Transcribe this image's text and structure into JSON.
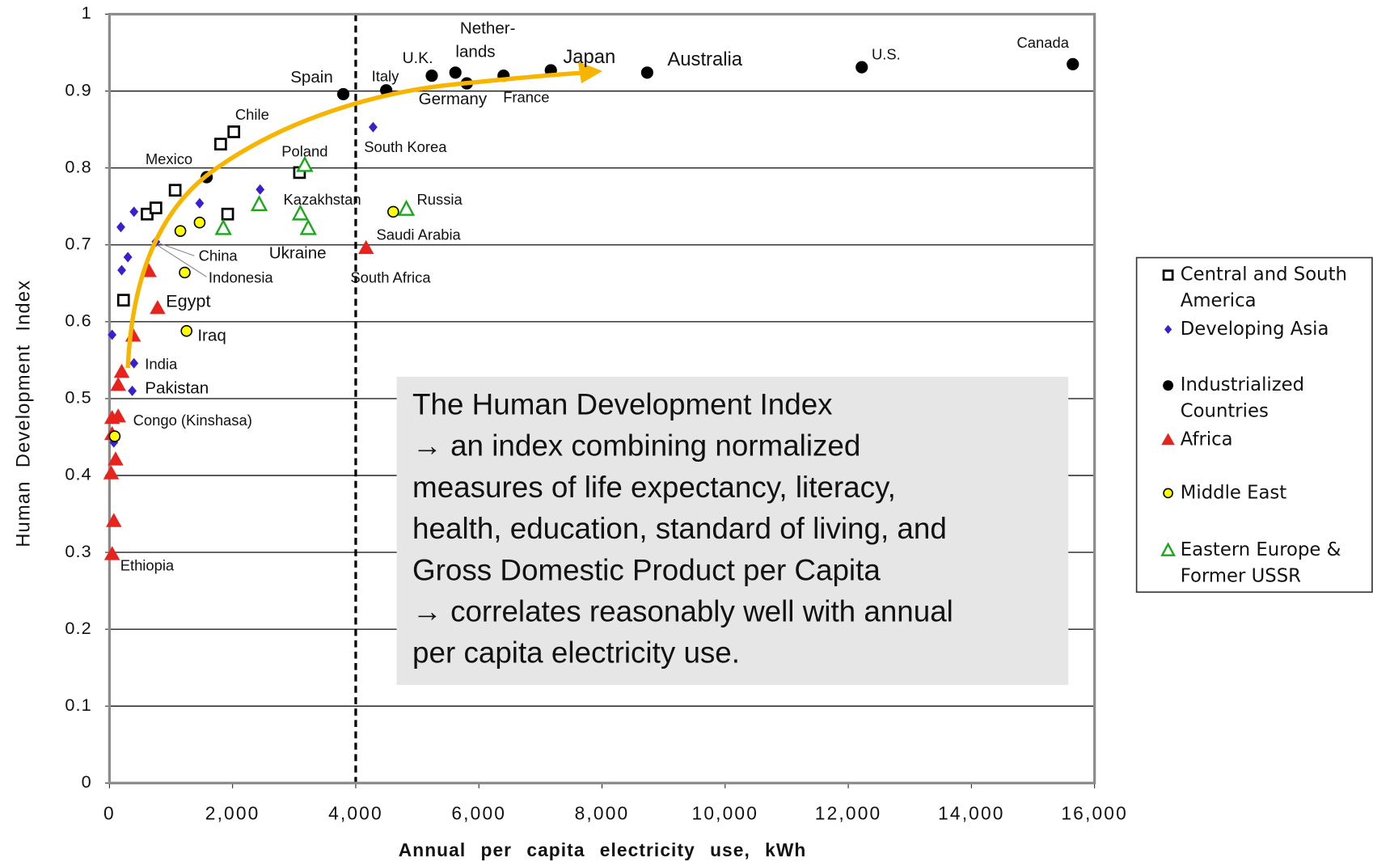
{
  "chart_data": {
    "type": "scatter",
    "xlabel": "Annual per capita electricity use, kWh",
    "ylabel": "Human Development Index",
    "xlim": [
      0,
      16000
    ],
    "ylim": [
      0,
      1
    ],
    "xticks": [
      0,
      {
        "value": 2000,
        "label": "2,000"
      },
      {
        "value": 4000,
        "label": "4,000"
      },
      {
        "value": 6000,
        "label": "6,000"
      },
      {
        "value": 8000,
        "label": "8,000"
      },
      {
        "value": 10000,
        "label": "10,000"
      },
      {
        "value": 12000,
        "label": "12,000"
      },
      {
        "value": 14000,
        "label": "14,000"
      },
      {
        "value": 16000,
        "label": "16,000"
      }
    ],
    "yticks": [
      0,
      0.1,
      0.2,
      0.3,
      0.4,
      0.5,
      0.6,
      0.7,
      0.8,
      0.9,
      1
    ],
    "grid": true,
    "reference_x": 4000,
    "legend": "right",
    "series": [
      {
        "name": "Central and South America",
        "marker": "square-open",
        "color": "#000000",
        "x": [
          228,
          612,
          754,
          1067,
          1806,
          2020,
          1920,
          3087
        ],
        "y": [
          0.628,
          0.74,
          0.748,
          0.771,
          0.831,
          0.847,
          0.74,
          0.794
        ]
      },
      {
        "name": "Developing Asia",
        "marker": "diamond",
        "color": "#3a1fd0",
        "x": [
          185,
          398,
          43,
          299,
          199,
          754,
          398,
          370,
          1465,
          2447,
          4282,
          71
        ],
        "y": [
          0.723,
          0.743,
          0.583,
          0.684,
          0.667,
          0.704,
          0.546,
          0.51,
          0.754,
          0.772,
          0.853,
          0.443
        ]
      },
      {
        "name": "Industrialized Countries",
        "marker": "circle",
        "color": "#000000",
        "x": [
          1579,
          3798,
          4495,
          5235,
          5619,
          5804,
          6401,
          7169,
          8734,
          12219,
          15647
        ],
        "y": [
          0.788,
          0.896,
          0.901,
          0.92,
          0.924,
          0.91,
          0.92,
          0.927,
          0.924,
          0.931,
          0.935
        ]
      },
      {
        "name": "Africa",
        "marker": "triangle",
        "color": "#e8231e",
        "x": [
          43,
          71,
          28,
          100,
          43,
          43,
          142,
          142,
          199,
          384,
          782,
          640,
          4168
        ],
        "y": [
          0.298,
          0.341,
          0.403,
          0.421,
          0.454,
          0.475,
          0.477,
          0.518,
          0.535,
          0.582,
          0.618,
          0.666,
          0.696
        ]
      },
      {
        "name": "Middle East",
        "marker": "circle-outlined",
        "color": "#ffff00",
        "x": [
          85,
          1252,
          1223,
          1152,
          1465,
          4609
        ],
        "y": [
          0.451,
          0.588,
          0.664,
          0.718,
          0.729,
          0.743
        ]
      },
      {
        "name": "Eastern Europe & Former USSR",
        "marker": "triangle-open",
        "color": "#1aa81a",
        "x": [
          3172,
          2432,
          1849,
          3101,
          3229,
          4822
        ],
        "y": [
          0.804,
          0.753,
          0.722,
          0.741,
          0.722,
          0.747
        ]
      }
    ],
    "annotations": [
      "Canada",
      "U.S.",
      "Australia",
      "Japan",
      "Nether-",
      "lands",
      "U.K.",
      "Italy",
      "Spain",
      "Germany",
      "France",
      "Chile",
      "South Korea",
      "Poland",
      "Mexico",
      "Kazakhstan",
      "Russia",
      "Saudi Arabia",
      "China",
      "Ukraine",
      "Indonesia",
      "South Africa",
      "Egypt",
      "Iraq",
      "India",
      "Pakistan",
      "Congo (Kinshasa)",
      "Ethiopia"
    ],
    "note": [
      "The Human Development Index",
      "→ an index combining normalized",
      "measures of life expectancy, literacy,",
      "health, education, standard of living, and",
      "Gross Domestic Product per Capita",
      "→ correlates reasonably well with annual",
      "per capita electricity use."
    ]
  }
}
